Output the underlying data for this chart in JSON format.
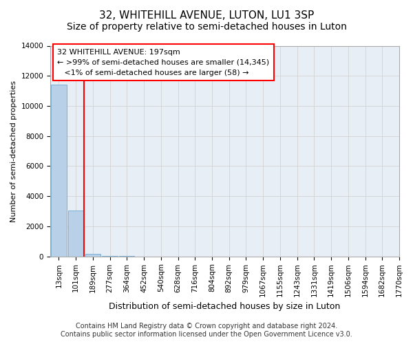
{
  "title": "32, WHITEHILL AVENUE, LUTON, LU1 3SP",
  "subtitle": "Size of property relative to semi-detached houses in Luton",
  "xlabel": "Distribution of semi-detached houses by size in Luton",
  "ylabel": "Number of semi-detached properties",
  "footer_line1": "Contains HM Land Registry data © Crown copyright and database right 2024.",
  "footer_line2": "Contains public sector information licensed under the Open Government Licence v3.0.",
  "bar_values": [
    11400,
    3050,
    150,
    30,
    10,
    5,
    3,
    2,
    1,
    1,
    0,
    0,
    0,
    0,
    0,
    0,
    0,
    0,
    0,
    0
  ],
  "bin_labels": [
    "13sqm",
    "101sqm",
    "189sqm",
    "277sqm",
    "364sqm",
    "452sqm",
    "540sqm",
    "628sqm",
    "716sqm",
    "804sqm",
    "892sqm",
    "979sqm",
    "1067sqm",
    "1155sqm",
    "1243sqm",
    "1331sqm",
    "1419sqm",
    "1506sqm",
    "1594sqm",
    "1682sqm",
    "1770sqm"
  ],
  "bar_color": "#b8d0e8",
  "bar_edge_color": "#7aafd4",
  "grid_color": "#cccccc",
  "bg_color": "#e8eef5",
  "annotation_line1": "32 WHITEHILL AVENUE: 197sqm",
  "annotation_line2": "← >99% of semi-detached houses are smaller (14,345)",
  "annotation_line3": "   <1% of semi-detached houses are larger (58) →",
  "annotation_box_color": "white",
  "annotation_border_color": "red",
  "red_line_x": 1.5,
  "ylim": [
    0,
    14000
  ],
  "yticks": [
    0,
    2000,
    4000,
    6000,
    8000,
    10000,
    12000,
    14000
  ],
  "title_fontsize": 11,
  "subtitle_fontsize": 10,
  "xlabel_fontsize": 9,
  "ylabel_fontsize": 8,
  "tick_fontsize": 7.5,
  "footer_fontsize": 7
}
